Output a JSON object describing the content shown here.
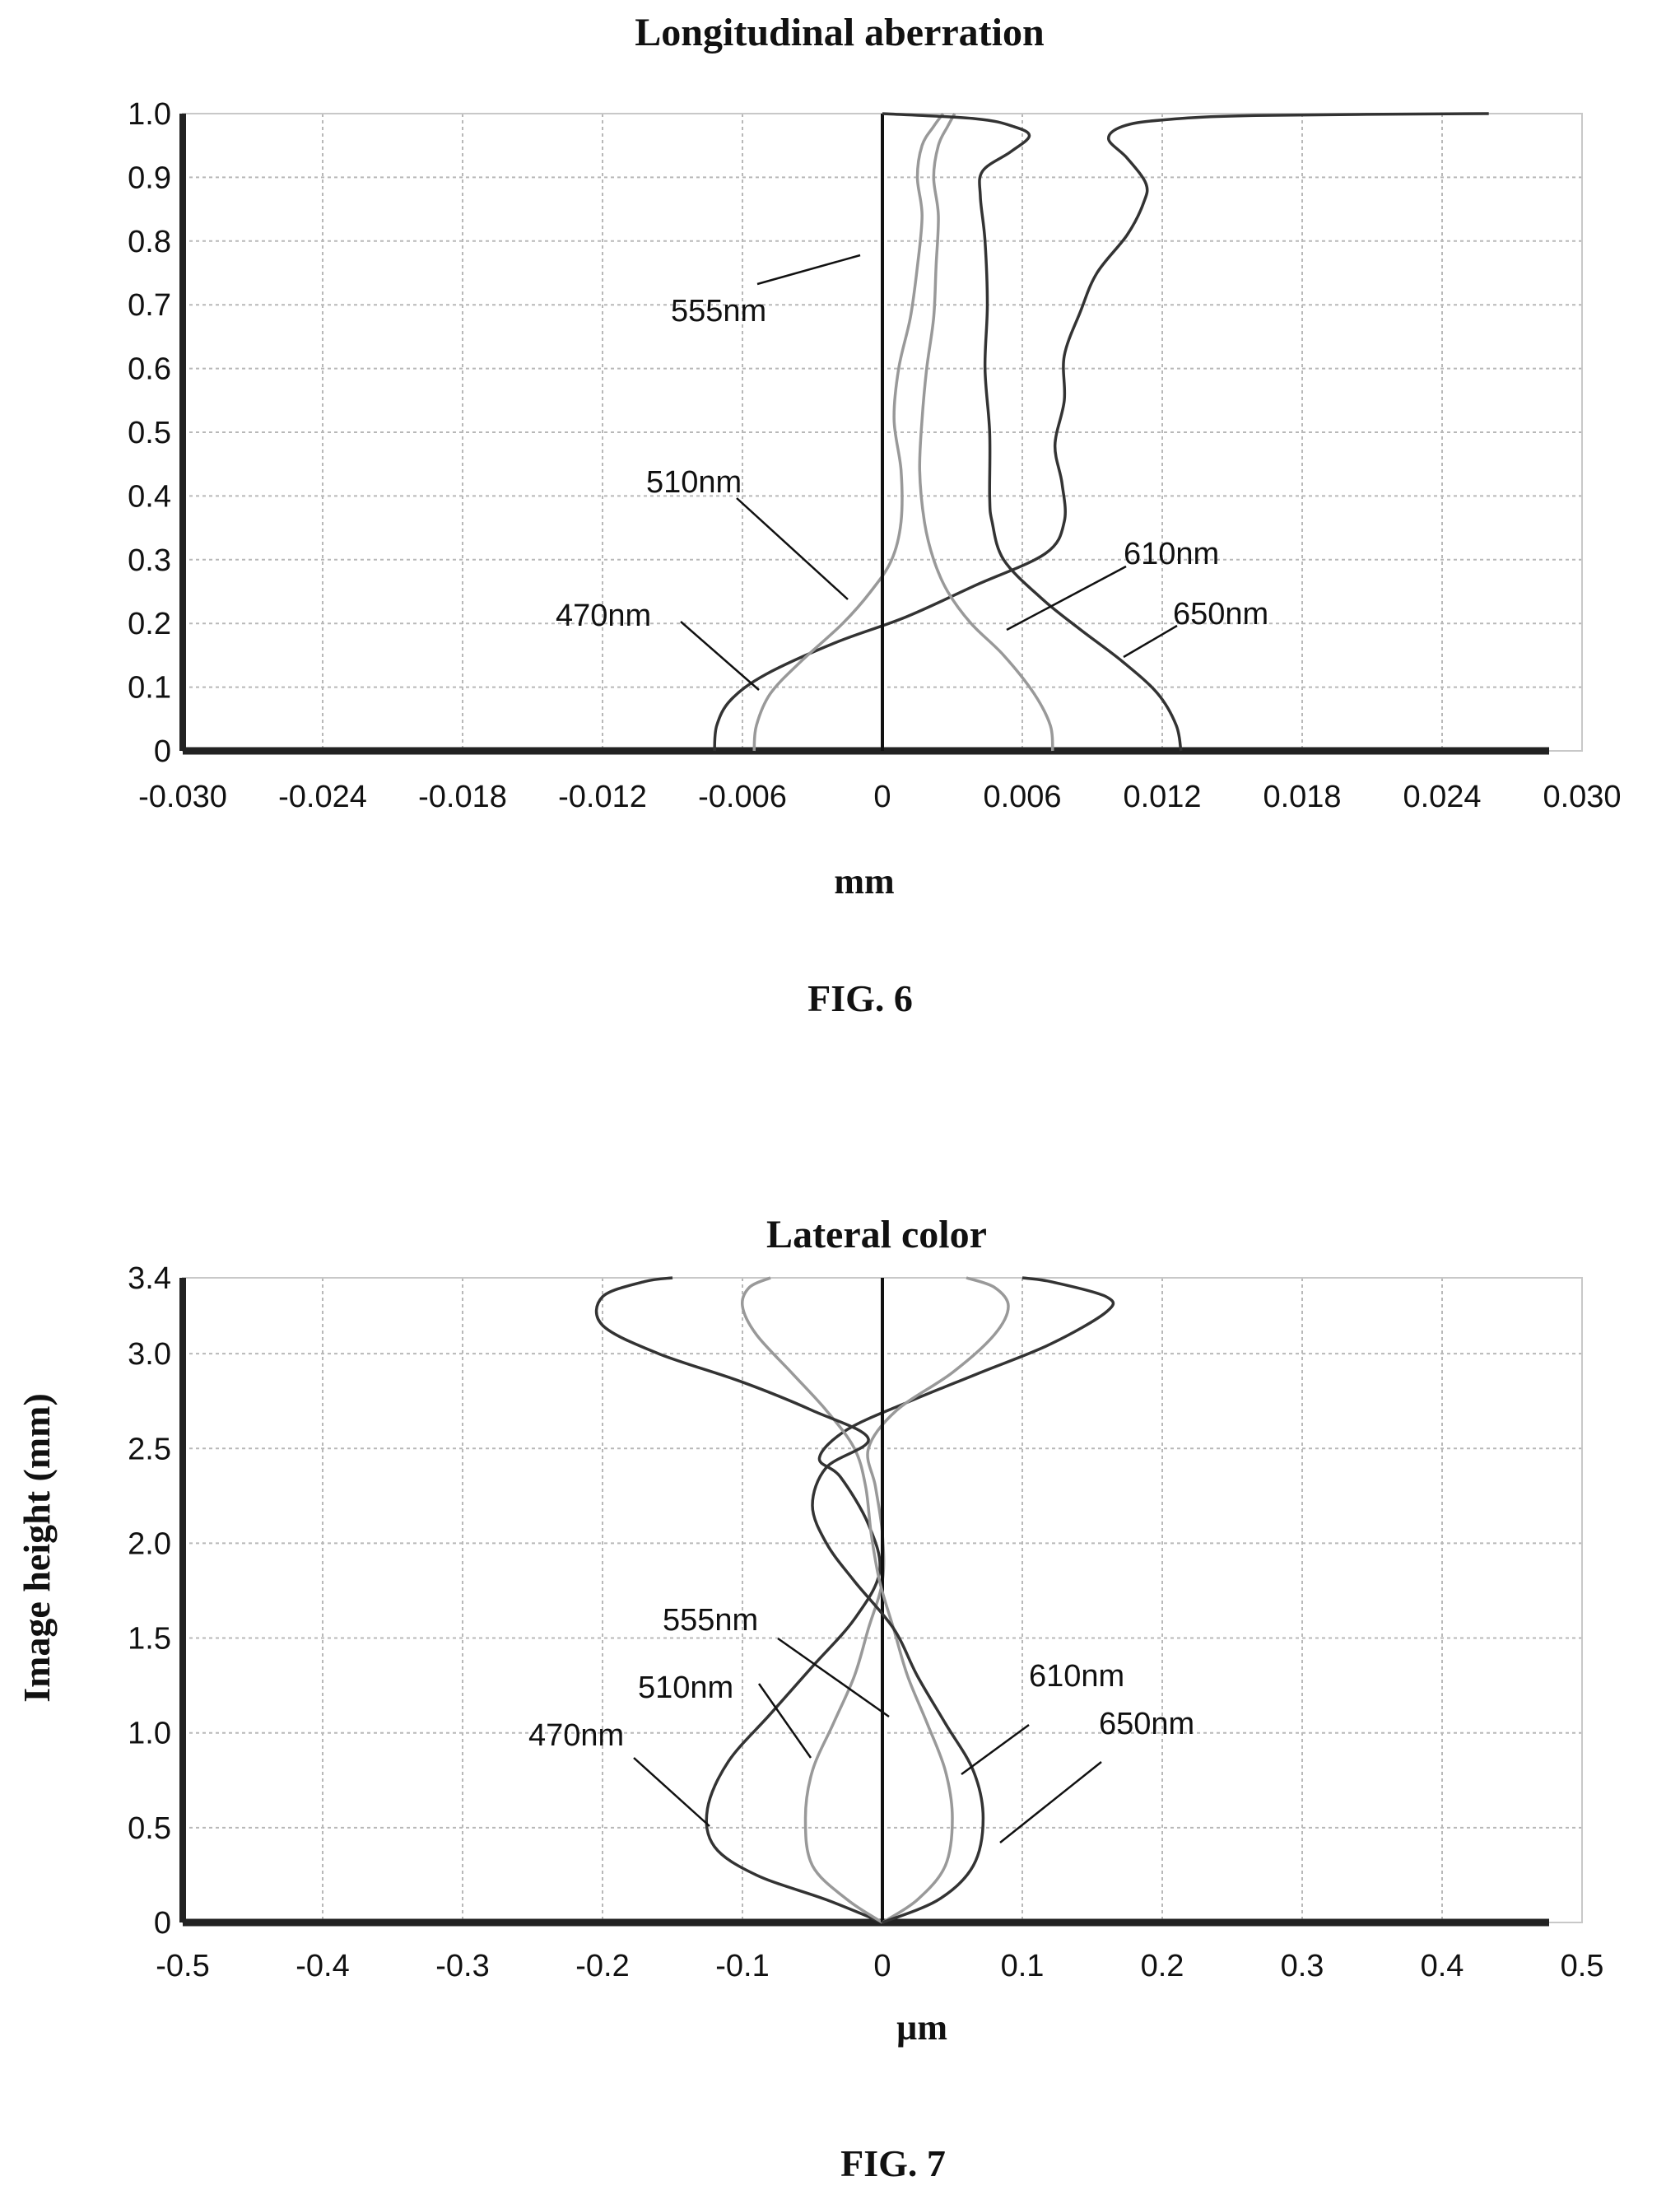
{
  "chart_data": [
    {
      "type": "line",
      "title": "Longitudinal aberration",
      "xlabel": "mm",
      "ylabel": "",
      "caption": "FIG. 6",
      "xlim": [
        -0.03,
        0.03
      ],
      "ylim": [
        0,
        1.0
      ],
      "x_ticks": [
        "-0.030",
        "-0.024",
        "-0.018",
        "-0.012",
        "-0.006",
        "0",
        "0.006",
        "0.012",
        "0.018",
        "0.024",
        "0.030"
      ],
      "y_ticks": [
        "0",
        "0.1",
        "0.2",
        "0.3",
        "0.4",
        "0.5",
        "0.6",
        "0.7",
        "0.8",
        "0.9",
        "1.0"
      ],
      "grid": true,
      "series": [
        {
          "name": "470nm",
          "color": "#333333",
          "points": [
            [
              -0.0072,
              0
            ],
            [
              -0.0071,
              0.04
            ],
            [
              -0.0065,
              0.08
            ],
            [
              -0.005,
              0.12
            ],
            [
              -0.002,
              0.17
            ],
            [
              0.001,
              0.21
            ],
            [
              0.004,
              0.26
            ],
            [
              0.007,
              0.31
            ],
            [
              0.0078,
              0.36
            ],
            [
              0.0077,
              0.42
            ],
            [
              0.0074,
              0.48
            ],
            [
              0.0078,
              0.55
            ],
            [
              0.0078,
              0.62
            ],
            [
              0.0085,
              0.69
            ],
            [
              0.0092,
              0.75
            ],
            [
              0.0105,
              0.81
            ],
            [
              0.0112,
              0.86
            ],
            [
              0.0113,
              0.89
            ],
            [
              0.0105,
              0.93
            ],
            [
              0.0097,
              0.96
            ],
            [
              0.0103,
              0.98
            ],
            [
              0.012,
              0.99
            ],
            [
              0.016,
              0.997
            ],
            [
              0.026,
              1.0
            ]
          ]
        },
        {
          "name": "510nm",
          "color": "#999999",
          "points": [
            [
              -0.0055,
              0
            ],
            [
              -0.0054,
              0.04
            ],
            [
              -0.0048,
              0.09
            ],
            [
              -0.0035,
              0.14
            ],
            [
              -0.0017,
              0.2
            ],
            [
              -0.0005,
              0.25
            ],
            [
              0.0004,
              0.3
            ],
            [
              0.0008,
              0.36
            ],
            [
              0.0008,
              0.44
            ],
            [
              0.0005,
              0.52
            ],
            [
              0.0007,
              0.6
            ],
            [
              0.0012,
              0.68
            ],
            [
              0.0015,
              0.76
            ],
            [
              0.0017,
              0.84
            ],
            [
              0.0015,
              0.9
            ],
            [
              0.0017,
              0.95
            ],
            [
              0.0022,
              0.98
            ],
            [
              0.0026,
              1.0
            ]
          ]
        },
        {
          "name": "555nm",
          "color": "#111111",
          "points": [
            [
              0,
              0
            ],
            [
              0,
              0.25
            ],
            [
              0,
              0.5
            ],
            [
              0,
              0.75
            ],
            [
              0,
              1.0
            ]
          ]
        },
        {
          "name": "610nm",
          "color": "#999999",
          "points": [
            [
              0.0073,
              0
            ],
            [
              0.0072,
              0.04
            ],
            [
              0.0065,
              0.09
            ],
            [
              0.0052,
              0.15
            ],
            [
              0.0038,
              0.2
            ],
            [
              0.0028,
              0.25
            ],
            [
              0.0022,
              0.3
            ],
            [
              0.0018,
              0.36
            ],
            [
              0.0016,
              0.44
            ],
            [
              0.0017,
              0.52
            ],
            [
              0.0019,
              0.6
            ],
            [
              0.0022,
              0.68
            ],
            [
              0.0023,
              0.76
            ],
            [
              0.0024,
              0.84
            ],
            [
              0.0022,
              0.9
            ],
            [
              0.0024,
              0.95
            ],
            [
              0.0028,
              0.98
            ],
            [
              0.0031,
              1.0
            ]
          ]
        },
        {
          "name": "650nm",
          "color": "#333333",
          "points": [
            [
              0.0128,
              0
            ],
            [
              0.0126,
              0.04
            ],
            [
              0.0118,
              0.09
            ],
            [
              0.0103,
              0.14
            ],
            [
              0.0085,
              0.19
            ],
            [
              0.0068,
              0.24
            ],
            [
              0.0052,
              0.3
            ],
            [
              0.0047,
              0.36
            ],
            [
              0.0046,
              0.4
            ],
            [
              0.0046,
              0.5
            ],
            [
              0.0044,
              0.6
            ],
            [
              0.0045,
              0.7
            ],
            [
              0.0044,
              0.8
            ],
            [
              0.0042,
              0.87
            ],
            [
              0.0043,
              0.91
            ],
            [
              0.0055,
              0.94
            ],
            [
              0.0063,
              0.965
            ],
            [
              0.0056,
              0.98
            ],
            [
              0.004,
              0.992
            ],
            [
              0.0,
              1.0
            ]
          ]
        }
      ],
      "annotations": [
        "555nm",
        "510nm",
        "470nm",
        "610nm",
        "650nm"
      ]
    },
    {
      "type": "line",
      "title": "Lateral color",
      "xlabel": "µm",
      "ylabel": "Image height (mm)",
      "caption": "FIG. 7",
      "xlim": [
        -0.5,
        0.5
      ],
      "ylim": [
        0,
        3.4
      ],
      "x_ticks": [
        "-0.5",
        "-0.4",
        "-0.3",
        "-0.2",
        "-0.1",
        "0",
        "0.1",
        "0.2",
        "0.3",
        "0.4",
        "0.5"
      ],
      "y_ticks": [
        "0",
        "0.5",
        "1.0",
        "1.5",
        "2.0",
        "2.5",
        "3.0",
        "3.4"
      ],
      "grid": true,
      "series": [
        {
          "name": "470nm",
          "color": "#333333",
          "points": [
            [
              0,
              0
            ],
            [
              -0.04,
              0.12
            ],
            [
              -0.09,
              0.25
            ],
            [
              -0.12,
              0.4
            ],
            [
              -0.125,
              0.6
            ],
            [
              -0.11,
              0.85
            ],
            [
              -0.08,
              1.1
            ],
            [
              -0.05,
              1.35
            ],
            [
              -0.02,
              1.6
            ],
            [
              -0.002,
              1.85
            ],
            [
              -0.01,
              2.1
            ],
            [
              -0.03,
              2.35
            ],
            [
              -0.045,
              2.45
            ],
            [
              -0.025,
              2.6
            ],
            [
              0.02,
              2.75
            ],
            [
              0.07,
              2.9
            ],
            [
              0.12,
              3.05
            ],
            [
              0.16,
              3.22
            ],
            [
              0.16,
              3.3
            ],
            [
              0.12,
              3.38
            ],
            [
              0.1,
              3.4
            ]
          ]
        },
        {
          "name": "510nm",
          "color": "#999999",
          "points": [
            [
              0,
              0
            ],
            [
              -0.025,
              0.12
            ],
            [
              -0.05,
              0.3
            ],
            [
              -0.055,
              0.55
            ],
            [
              -0.05,
              0.8
            ],
            [
              -0.035,
              1.05
            ],
            [
              -0.02,
              1.3
            ],
            [
              -0.01,
              1.55
            ],
            [
              0.0,
              1.8
            ],
            [
              0.0,
              2.05
            ],
            [
              -0.005,
              2.3
            ],
            [
              -0.01,
              2.5
            ],
            [
              0.01,
              2.7
            ],
            [
              0.05,
              2.9
            ],
            [
              0.08,
              3.1
            ],
            [
              0.09,
              3.25
            ],
            [
              0.08,
              3.35
            ],
            [
              0.06,
              3.4
            ]
          ]
        },
        {
          "name": "555nm",
          "color": "#111111",
          "points": [
            [
              0,
              0
            ],
            [
              0,
              1.0
            ],
            [
              0,
              2.0
            ],
            [
              0,
              3.0
            ],
            [
              0,
              3.4
            ]
          ]
        },
        {
          "name": "610nm",
          "color": "#999999",
          "points": [
            [
              0,
              0
            ],
            [
              0.025,
              0.12
            ],
            [
              0.045,
              0.3
            ],
            [
              0.05,
              0.55
            ],
            [
              0.045,
              0.8
            ],
            [
              0.032,
              1.05
            ],
            [
              0.018,
              1.3
            ],
            [
              0.008,
              1.55
            ],
            [
              -0.002,
              1.8
            ],
            [
              -0.008,
              2.05
            ],
            [
              -0.012,
              2.3
            ],
            [
              -0.02,
              2.5
            ],
            [
              -0.04,
              2.7
            ],
            [
              -0.065,
              2.9
            ],
            [
              -0.09,
              3.1
            ],
            [
              -0.1,
              3.25
            ],
            [
              -0.095,
              3.35
            ],
            [
              -0.08,
              3.4
            ]
          ]
        },
        {
          "name": "650nm",
          "color": "#333333",
          "points": [
            [
              0,
              0
            ],
            [
              0.04,
              0.12
            ],
            [
              0.065,
              0.3
            ],
            [
              0.072,
              0.55
            ],
            [
              0.065,
              0.8
            ],
            [
              0.045,
              1.05
            ],
            [
              0.025,
              1.3
            ],
            [
              0.008,
              1.55
            ],
            [
              -0.02,
              1.8
            ],
            [
              -0.04,
              2.0
            ],
            [
              -0.05,
              2.2
            ],
            [
              -0.04,
              2.4
            ],
            [
              -0.01,
              2.55
            ],
            [
              -0.05,
              2.7
            ],
            [
              -0.1,
              2.85
            ],
            [
              -0.16,
              3.0
            ],
            [
              -0.2,
              3.15
            ],
            [
              -0.2,
              3.3
            ],
            [
              -0.17,
              3.38
            ],
            [
              -0.15,
              3.4
            ]
          ]
        }
      ],
      "annotations": [
        "555nm",
        "510nm",
        "470nm",
        "610nm",
        "650nm"
      ]
    }
  ]
}
